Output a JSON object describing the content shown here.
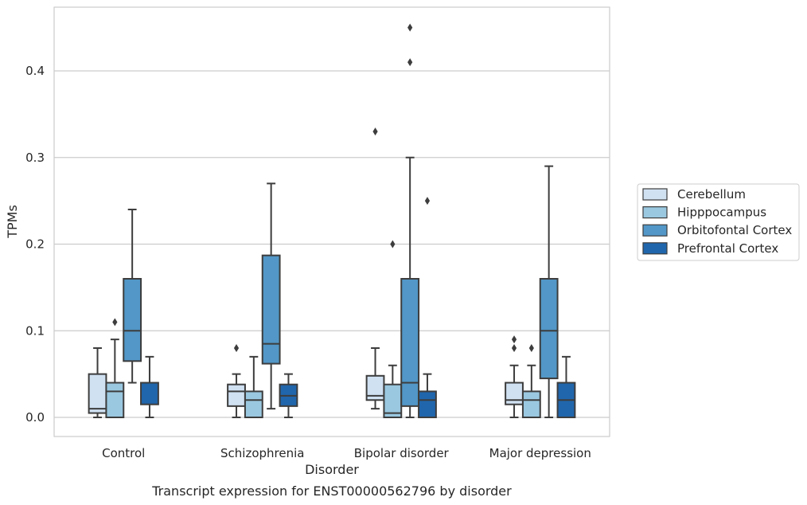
{
  "chart_data": {
    "type": "boxplot",
    "title": "",
    "xlabel": "Disorder",
    "ylabel": "TPMs",
    "caption": "Transcript expression for ENST00000562796 by disorder",
    "categories": [
      "Control",
      "Schizophrenia",
      "Bipolar disorder",
      "Major depression"
    ],
    "ylim": [
      -0.022,
      0.475
    ],
    "yticks": [
      0.0,
      0.1,
      0.2,
      0.3,
      0.4
    ],
    "ytick_labels": [
      "0.0",
      "0.1",
      "0.2",
      "0.3",
      "0.4"
    ],
    "grid": "horizontal",
    "legend_position": "right",
    "series": [
      {
        "name": "Cerebellum",
        "color": "#d0e1f2",
        "boxes": [
          {
            "whislo": 0.0,
            "q1": 0.005,
            "med": 0.01,
            "q3": 0.05,
            "whishi": 0.08,
            "fliers": []
          },
          {
            "whislo": 0.0,
            "q1": 0.013,
            "med": 0.03,
            "q3": 0.038,
            "whishi": 0.05,
            "fliers": [
              0.08
            ]
          },
          {
            "whislo": 0.01,
            "q1": 0.02,
            "med": 0.025,
            "q3": 0.048,
            "whishi": 0.08,
            "fliers": [
              0.33
            ]
          },
          {
            "whislo": 0.0,
            "q1": 0.015,
            "med": 0.02,
            "q3": 0.04,
            "whishi": 0.06,
            "fliers": [
              0.08,
              0.09
            ]
          }
        ]
      },
      {
        "name": "Hipppocampus",
        "color": "#9ac8e0",
        "boxes": [
          {
            "whislo": 0.0,
            "q1": 0.0,
            "med": 0.03,
            "q3": 0.04,
            "whishi": 0.09,
            "fliers": [
              0.11
            ]
          },
          {
            "whislo": 0.0,
            "q1": 0.0,
            "med": 0.02,
            "q3": 0.03,
            "whishi": 0.07,
            "fliers": []
          },
          {
            "whislo": 0.0,
            "q1": 0.0,
            "med": 0.005,
            "q3": 0.038,
            "whishi": 0.06,
            "fliers": [
              0.2
            ]
          },
          {
            "whislo": 0.0,
            "q1": 0.0,
            "med": 0.02,
            "q3": 0.03,
            "whishi": 0.06,
            "fliers": [
              0.08
            ]
          }
        ]
      },
      {
        "name": "Orbitofontal Cortex",
        "color": "#5297c7",
        "boxes": [
          {
            "whislo": 0.04,
            "q1": 0.065,
            "med": 0.1,
            "q3": 0.16,
            "whishi": 0.24,
            "fliers": []
          },
          {
            "whislo": 0.01,
            "q1": 0.062,
            "med": 0.085,
            "q3": 0.187,
            "whishi": 0.27,
            "fliers": []
          },
          {
            "whislo": 0.0,
            "q1": 0.013,
            "med": 0.04,
            "q3": 0.16,
            "whishi": 0.3,
            "fliers": [
              0.41,
              0.45
            ]
          },
          {
            "whislo": 0.0,
            "q1": 0.045,
            "med": 0.1,
            "q3": 0.16,
            "whishi": 0.29,
            "fliers": []
          }
        ]
      },
      {
        "name": "Prefrontal Cortex",
        "color": "#2066ac",
        "boxes": [
          {
            "whislo": 0.0,
            "q1": 0.015,
            "med": 0.04,
            "q3": 0.04,
            "whishi": 0.07,
            "fliers": []
          },
          {
            "whislo": 0.0,
            "q1": 0.013,
            "med": 0.025,
            "q3": 0.038,
            "whishi": 0.05,
            "fliers": []
          },
          {
            "whislo": 0.0,
            "q1": 0.0,
            "med": 0.02,
            "q3": 0.03,
            "whishi": 0.05,
            "fliers": [
              0.25
            ]
          },
          {
            "whislo": 0.0,
            "q1": 0.0,
            "med": 0.02,
            "q3": 0.04,
            "whishi": 0.07,
            "fliers": []
          }
        ]
      }
    ]
  }
}
